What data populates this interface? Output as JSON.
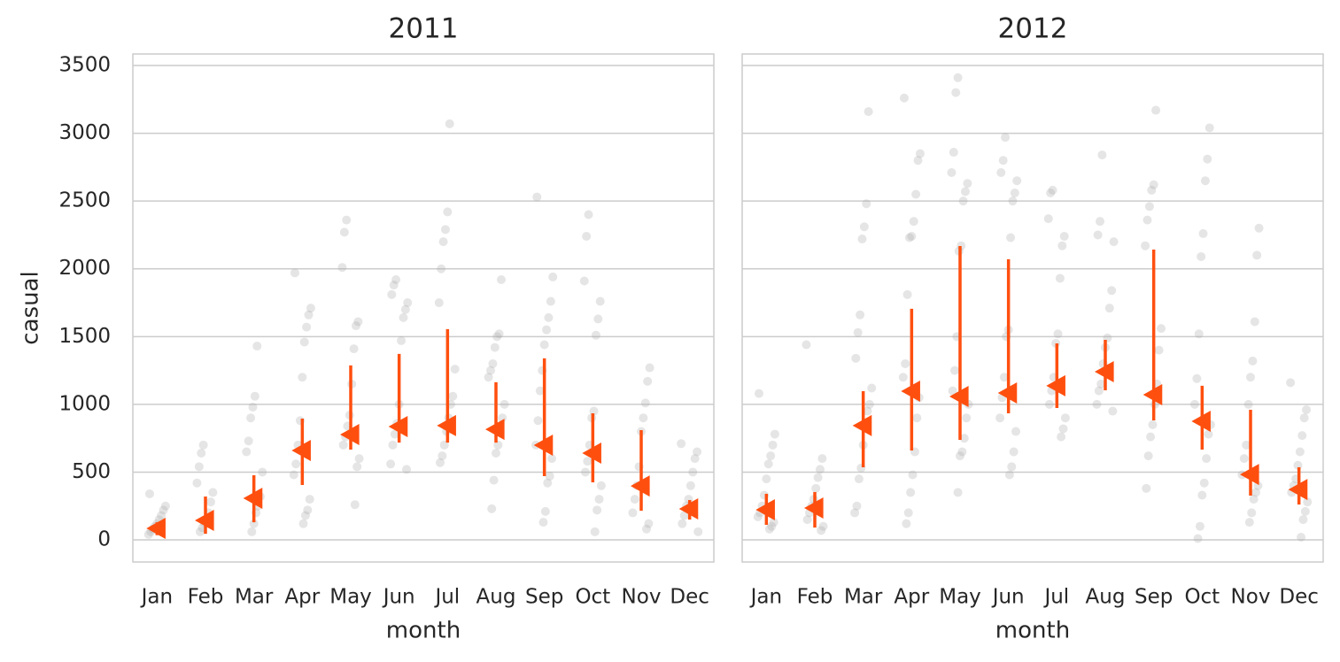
{
  "chart_data": [
    {
      "type": "point",
      "title": "2011",
      "xlabel": "month",
      "ylabel": "casual",
      "categories": [
        "Jan",
        "Feb",
        "Mar",
        "Apr",
        "May",
        "Jun",
        "Jul",
        "Aug",
        "Sep",
        "Oct",
        "Nov",
        "Dec"
      ],
      "ylim": [
        -163,
        3585
      ],
      "yticks": [
        0,
        500,
        1000,
        1500,
        2000,
        2500,
        3000,
        3500
      ],
      "grid": true,
      "color": "#ff4f0f",
      "point_color": "#aaaaaa",
      "values": [
        85,
        144,
        307,
        660,
        777,
        836,
        843,
        816,
        699,
        640,
        398,
        229
      ],
      "errors": [
        [
          35,
          130
        ],
        [
          45,
          320
        ],
        [
          130,
          477
        ],
        [
          405,
          895
        ],
        [
          666,
          1287
        ],
        [
          718,
          1372
        ],
        [
          718,
          1555
        ],
        [
          718,
          1163
        ],
        [
          470,
          1340
        ],
        [
          425,
          934
        ],
        [
          215,
          810
        ],
        [
          150,
          294
        ]
      ],
      "points": [
        [
          40,
          60,
          80,
          100,
          120,
          150,
          180,
          220,
          250,
          340
        ],
        [
          60,
          90,
          120,
          150,
          200,
          280,
          350,
          420,
          540,
          640,
          700
        ],
        [
          60,
          120,
          200,
          250,
          320,
          500,
          650,
          730,
          900,
          980,
          1060,
          1430
        ],
        [
          120,
          180,
          220,
          300,
          480,
          560,
          700,
          880,
          1200,
          1460,
          1570,
          1660,
          1710,
          1970
        ],
        [
          260,
          540,
          600,
          700,
          760,
          840,
          920,
          1150,
          1410,
          1580,
          1610,
          2010,
          2270,
          2360
        ],
        [
          520,
          560,
          700,
          780,
          860,
          1000,
          1470,
          1640,
          1700,
          1750,
          1810,
          1880,
          1920
        ],
        [
          570,
          620,
          700,
          800,
          900,
          1000,
          1060,
          1260,
          1750,
          2000,
          2200,
          2290,
          2420,
          3070
        ],
        [
          230,
          440,
          640,
          700,
          800,
          900,
          1000,
          1200,
          1250,
          1300,
          1420,
          1500,
          1520,
          1920
        ],
        [
          130,
          210,
          420,
          470,
          600,
          700,
          880,
          1100,
          1250,
          1440,
          1550,
          1640,
          1760,
          1940,
          2530
        ],
        [
          60,
          220,
          300,
          400,
          500,
          580,
          700,
          900,
          950,
          1510,
          1630,
          1760,
          1910,
          2240,
          2400
        ],
        [
          80,
          120,
          200,
          300,
          400,
          540,
          800,
          900,
          1010,
          1170,
          1270
        ],
        [
          60,
          120,
          180,
          250,
          300,
          400,
          500,
          600,
          650,
          710
        ]
      ]
    },
    {
      "type": "point",
      "title": "2012",
      "xlabel": "month",
      "categories": [
        "Jan",
        "Feb",
        "Mar",
        "Apr",
        "May",
        "Jun",
        "Jul",
        "Aug",
        "Sep",
        "Oct",
        "Nov",
        "Dec"
      ],
      "ylim": [
        -163,
        3585
      ],
      "yticks": [
        0,
        500,
        1000,
        1500,
        2000,
        2500,
        3000,
        3500
      ],
      "grid": true,
      "color": "#ff4f0f",
      "point_color": "#aaaaaa",
      "values": [
        222,
        235,
        843,
        1097,
        1058,
        1084,
        1137,
        1241,
        1071,
        875,
        483,
        372
      ],
      "errors": [
        [
          111,
          340
        ],
        [
          91,
          353
        ],
        [
          536,
          1097
        ],
        [
          660,
          1705
        ],
        [
          738,
          2168
        ],
        [
          934,
          2071
        ],
        [
          973,
          1450
        ],
        [
          1104,
          1476
        ],
        [
          882,
          2142
        ],
        [
          666,
          1137
        ],
        [
          327,
          960
        ],
        [
          261,
          536
        ]
      ],
      "points": [
        [
          80,
          100,
          130,
          170,
          200,
          250,
          330,
          450,
          560,
          620,
          700,
          780,
          1080
        ],
        [
          70,
          100,
          150,
          200,
          250,
          300,
          380,
          460,
          520,
          600,
          1440
        ],
        [
          200,
          250,
          450,
          530,
          700,
          850,
          950,
          1000,
          1120,
          1340,
          1530,
          1660,
          2220,
          2310,
          2480,
          3160
        ],
        [
          120,
          200,
          350,
          480,
          650,
          900,
          1050,
          1200,
          1300,
          1810,
          2230,
          2240,
          2350,
          2550,
          2800,
          2850,
          3260
        ],
        [
          350,
          620,
          650,
          750,
          900,
          1000,
          1100,
          1250,
          1500,
          2130,
          2170,
          2500,
          2570,
          2630,
          2710,
          2860,
          3300,
          3410
        ],
        [
          480,
          540,
          650,
          800,
          900,
          1050,
          1200,
          1500,
          1550,
          2230,
          2500,
          2560,
          2650,
          2710,
          2800,
          2970
        ],
        [
          760,
          820,
          900,
          1000,
          1100,
          1200,
          1450,
          1520,
          1930,
          2170,
          2240,
          2370,
          2560,
          2580
        ],
        [
          950,
          1000,
          1100,
          1150,
          1300,
          1420,
          1490,
          1710,
          1840,
          2200,
          2250,
          2350,
          2840
        ],
        [
          380,
          620,
          760,
          850,
          1000,
          1150,
          1400,
          1560,
          2170,
          2360,
          2460,
          2580,
          2620,
          3170
        ],
        [
          10,
          100,
          330,
          420,
          600,
          780,
          850,
          1000,
          1190,
          1520,
          2090,
          2260,
          2650,
          2810,
          3040
        ],
        [
          130,
          200,
          300,
          350,
          400,
          480,
          600,
          700,
          1000,
          1200,
          1320,
          1610,
          2100,
          2300
        ],
        [
          20,
          150,
          210,
          280,
          350,
          400,
          450,
          550,
          650,
          770,
          900,
          960,
          1160
        ]
      ]
    }
  ]
}
